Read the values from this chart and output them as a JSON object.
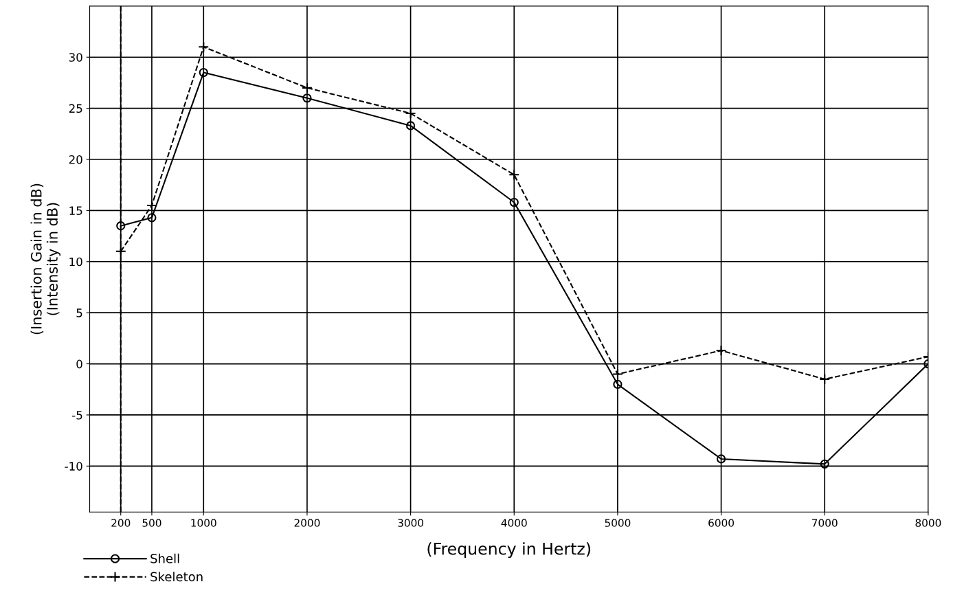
{
  "chart_data": {
    "type": "line",
    "xlabel": "(Frequency in Hertz)",
    "ylabel": "(Insertion Gain in dB)\n(Intensity in dB)",
    "x": [
      200,
      500,
      1000,
      2000,
      3000,
      4000,
      5000,
      6000,
      7000,
      8000
    ],
    "series": [
      {
        "name": "Shell",
        "color": "#000000",
        "marker": "circle",
        "line_style": "solid",
        "values": [
          13.5,
          14.3,
          28.5,
          26,
          23.3,
          15.8,
          -2,
          -9.3,
          -9.8,
          0
        ]
      },
      {
        "name": "Skeleton",
        "color": "#000000",
        "marker": "cross",
        "line_style": "dashed",
        "values": [
          11,
          15.5,
          31,
          27,
          24.5,
          18.5,
          -1,
          1.3,
          -1.5,
          0.7
        ]
      }
    ],
    "xlim": [
      -100,
      8000
    ],
    "ylim": [
      -14.5,
      35
    ],
    "xticks": [
      200,
      500,
      1000,
      2000,
      3000,
      4000,
      5000,
      6000,
      7000,
      8000
    ],
    "yticks": [
      -10,
      -5,
      0,
      5,
      10,
      15,
      20,
      25,
      30
    ],
    "ref_lines": [
      {
        "axis": "x",
        "value": 200,
        "color": "#000000",
        "line_style": "dashed"
      }
    ],
    "grid": true,
    "legend": "bottom left"
  }
}
